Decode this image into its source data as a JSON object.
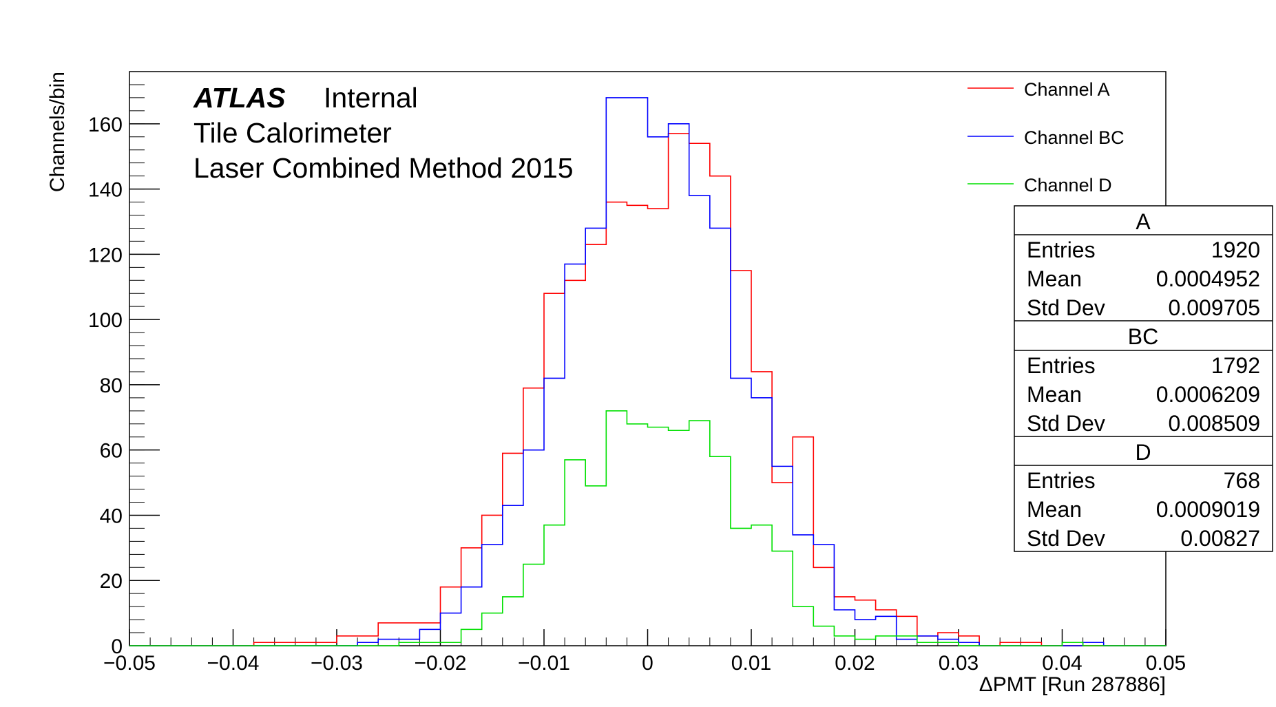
{
  "chart_data": {
    "type": "histogram",
    "xlabel": "ΔPMT [Run 287886]",
    "ylabel": "Channels/bin",
    "xlim": [
      -0.05,
      0.05
    ],
    "ylim": [
      0,
      176
    ],
    "x_ticks": [
      -0.05,
      -0.04,
      -0.03,
      -0.02,
      -0.01,
      0,
      0.01,
      0.02,
      0.03,
      0.04,
      0.05
    ],
    "x_tick_labels": [
      "−0.05",
      "−0.04",
      "−0.03",
      "−0.02",
      "−0.01",
      "0",
      "0.01",
      "0.02",
      "0.03",
      "0.04",
      "0.05"
    ],
    "y_ticks": [
      0,
      20,
      40,
      60,
      80,
      100,
      120,
      140,
      160
    ],
    "y_tick_labels": [
      "0",
      "20",
      "40",
      "60",
      "80",
      "100",
      "120",
      "140",
      "160"
    ],
    "bin_edges_start": -0.05,
    "bin_width": 0.002,
    "annotations": {
      "atlas": "ATLAS",
      "internal": "Internal",
      "line2": "Tile Calorimeter",
      "line3": "Laser Combined Method 2015"
    },
    "legend_position": "top-right",
    "series": [
      {
        "name": "Channel A",
        "color": "#ff0000",
        "values": [
          0,
          0,
          0,
          0,
          0,
          0,
          1,
          1,
          1,
          1,
          3,
          3,
          7,
          7,
          7,
          18,
          30,
          40,
          59,
          79,
          108,
          112,
          123,
          136,
          135,
          134,
          157,
          154,
          144,
          115,
          84,
          50,
          64,
          24,
          15,
          14,
          11,
          9,
          3,
          4,
          3,
          0,
          1,
          1,
          0,
          0,
          0,
          0,
          0,
          0
        ]
      },
      {
        "name": "Channel BC",
        "color": "#0000ff",
        "values": [
          0,
          0,
          0,
          0,
          0,
          0,
          0,
          0,
          0,
          0,
          0,
          1,
          2,
          2,
          5,
          10,
          18,
          31,
          43,
          60,
          82,
          117,
          128,
          168,
          168,
          156,
          160,
          138,
          128,
          82,
          76,
          55,
          34,
          31,
          11,
          8,
          9,
          2,
          3,
          2,
          1,
          0,
          0,
          0,
          0,
          0,
          1,
          0,
          0,
          0
        ]
      },
      {
        "name": "Channel D",
        "color": "#00e000",
        "values": [
          0,
          0,
          0,
          0,
          0,
          0,
          0,
          0,
          0,
          0,
          0,
          0,
          0,
          1,
          1,
          1,
          5,
          10,
          15,
          25,
          37,
          57,
          49,
          72,
          68,
          67,
          66,
          69,
          58,
          36,
          37,
          29,
          12,
          6,
          3,
          2,
          3,
          3,
          1,
          1,
          0,
          0,
          0,
          0,
          0,
          1,
          0,
          0,
          0,
          0
        ]
      }
    ],
    "stats": [
      {
        "title": "A",
        "rows": [
          {
            "label": "Entries",
            "value": "1920"
          },
          {
            "label": "Mean",
            "value": "0.0004952"
          },
          {
            "label": "Std Dev",
            "value": "0.009705"
          }
        ]
      },
      {
        "title": "BC",
        "rows": [
          {
            "label": "Entries",
            "value": "1792"
          },
          {
            "label": "Mean",
            "value": "0.0006209"
          },
          {
            "label": "Std Dev",
            "value": "0.008509"
          }
        ]
      },
      {
        "title": "D",
        "rows": [
          {
            "label": "Entries",
            "value": "768"
          },
          {
            "label": "Mean",
            "value": "0.0009019"
          },
          {
            "label": "Std Dev",
            "value": "0.00827"
          }
        ]
      }
    ]
  }
}
